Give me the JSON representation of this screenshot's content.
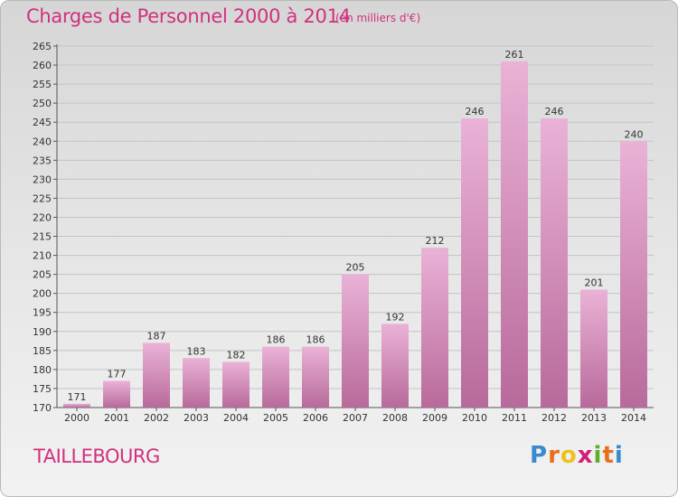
{
  "header": {
    "title": "Charges de Personnel 2000 à 2014",
    "subtitle": "(en milliers d'€)"
  },
  "footer": {
    "commune": "TAILLEBOURG",
    "logo_letters": [
      "P",
      "r",
      "o",
      "x",
      "i",
      "t",
      "i"
    ],
    "logo_colors": [
      "#3a8ad0",
      "#e8701a",
      "#f0c020",
      "#d02078",
      "#5cb030",
      "#e8701a",
      "#3a8ad0"
    ]
  },
  "colors": {
    "bar_light": "#eab2d6",
    "bar_dark": "#b86a9b",
    "text": "#d0307f"
  },
  "chart_data": {
    "type": "bar",
    "categories": [
      "2000",
      "2001",
      "2002",
      "2003",
      "2004",
      "2005",
      "2006",
      "2007",
      "2008",
      "2009",
      "2010",
      "2011",
      "2012",
      "2013",
      "2014"
    ],
    "values": [
      171,
      177,
      187,
      183,
      182,
      186,
      186,
      205,
      192,
      212,
      246,
      261,
      246,
      201,
      240
    ],
    "data_labels": [
      "171",
      "177",
      "187",
      "183",
      "182",
      "186",
      "186",
      "205",
      "192",
      "212",
      "246",
      "261",
      "246",
      "201",
      "240"
    ],
    "yticks": [
      "170",
      "175",
      "180",
      "185",
      "190",
      "195",
      "200",
      "205",
      "210",
      "215",
      "220",
      "225",
      "230",
      "235",
      "240",
      "245",
      "250",
      "255",
      "260",
      "265"
    ],
    "ylim": [
      170,
      265
    ],
    "grid": true,
    "title": "Charges de Personnel 2000 à 2014",
    "xlabel": "",
    "ylabel": ""
  }
}
